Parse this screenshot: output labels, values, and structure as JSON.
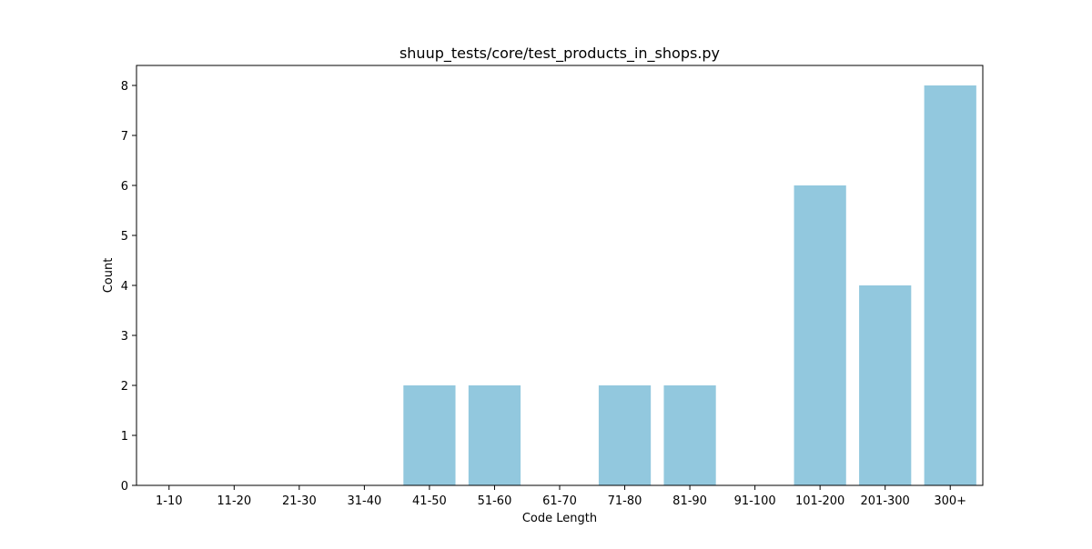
{
  "chart_data": {
    "type": "bar",
    "title": "shuup_tests/core/test_products_in_shops.py",
    "xlabel": "Code Length",
    "ylabel": "Count",
    "categories": [
      "1-10",
      "11-20",
      "21-30",
      "31-40",
      "41-50",
      "51-60",
      "61-70",
      "71-80",
      "81-90",
      "91-100",
      "101-200",
      "201-300",
      "300+"
    ],
    "values": [
      0,
      0,
      0,
      0,
      2,
      2,
      0,
      2,
      2,
      0,
      6,
      4,
      8
    ],
    "yticks": [
      0,
      1,
      2,
      3,
      4,
      5,
      6,
      7,
      8
    ],
    "ylim": [
      0,
      8.4
    ],
    "grid": false,
    "bar_color": "#92c8de"
  }
}
